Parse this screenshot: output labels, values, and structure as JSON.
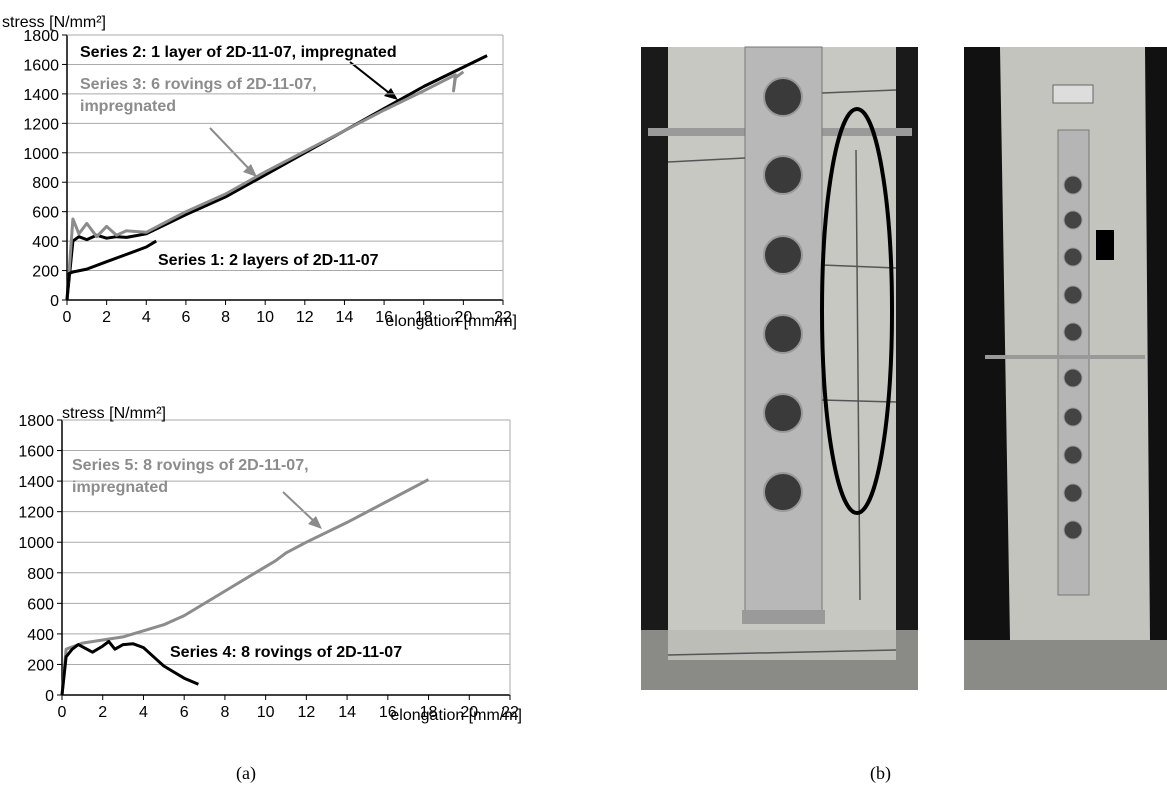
{
  "chart_data": [
    {
      "type": "line",
      "ylabel": "stress [N/mm²]",
      "xlabel": "elongation [mm/m]",
      "xlim": [
        0,
        22
      ],
      "ylim": [
        0,
        1800
      ],
      "xticks": [
        0,
        2,
        4,
        6,
        8,
        10,
        12,
        14,
        16,
        18,
        20,
        22
      ],
      "yticks": [
        0,
        200,
        400,
        600,
        800,
        1000,
        1200,
        1400,
        1600,
        1800
      ],
      "grid": true,
      "series": [
        {
          "name": "Series 2: 1 layer of 2D-11-07, impregnated",
          "color": "#000000",
          "x": [
            0,
            0.3,
            0.6,
            1,
            1.5,
            2,
            2.5,
            3,
            4,
            6,
            8,
            10,
            12,
            14,
            16,
            18,
            21.2
          ],
          "values": [
            0,
            400,
            430,
            410,
            440,
            420,
            430,
            425,
            450,
            580,
            700,
            850,
            1000,
            1150,
            1300,
            1450,
            1660
          ]
        },
        {
          "name": "Series 3: 6 rovings of 2D-11-07,\nimpregnated",
          "color": "#8c8c8c",
          "x": [
            0,
            0.3,
            0.6,
            1,
            1.5,
            2,
            2.5,
            3,
            4,
            5,
            6,
            8,
            10,
            12,
            14,
            16,
            18,
            19.6,
            19.5,
            19.6,
            20
          ],
          "values": [
            0,
            550,
            450,
            520,
            430,
            500,
            440,
            470,
            460,
            530,
            600,
            720,
            870,
            1010,
            1150,
            1290,
            1420,
            1530,
            1420,
            1510,
            1550
          ]
        },
        {
          "name": "Series 1: 2 layers of 2D-11-07",
          "color": "#000000",
          "x": [
            0,
            0.1,
            0.3,
            1,
            2,
            3,
            4,
            4.5
          ],
          "values": [
            0,
            180,
            190,
            210,
            260,
            310,
            360,
            400
          ]
        }
      ]
    },
    {
      "type": "line",
      "ylabel": "stress [N/mm²]",
      "xlabel": "elongation [mm/m]",
      "xlim": [
        0,
        22
      ],
      "ylim": [
        0,
        1800
      ],
      "xticks": [
        0,
        2,
        4,
        6,
        8,
        10,
        12,
        14,
        16,
        18,
        20,
        22
      ],
      "yticks": [
        0,
        200,
        400,
        600,
        800,
        1000,
        1200,
        1400,
        1600,
        1800
      ],
      "grid": true,
      "series": [
        {
          "name": "Series 5: 8 rovings of 2D-11-07,\nimpregnated",
          "color": "#8c8c8c",
          "x": [
            0,
            0.2,
            1,
            2,
            3,
            4,
            5,
            6,
            8,
            10,
            10.5,
            11,
            12,
            14,
            16,
            18
          ],
          "values": [
            0,
            300,
            340,
            360,
            380,
            420,
            460,
            520,
            680,
            840,
            880,
            930,
            1000,
            1130,
            1270,
            1410
          ]
        },
        {
          "name": "Series 4: 8 rovings of 2D-11-07",
          "color": "#000000",
          "x": [
            0,
            0.2,
            0.5,
            0.8,
            1.5,
            2,
            2.3,
            2.6,
            3,
            3.5,
            4,
            4.5,
            5,
            5.5,
            6,
            6.7
          ],
          "values": [
            0,
            250,
            300,
            330,
            280,
            320,
            350,
            300,
            330,
            335,
            310,
            250,
            190,
            150,
            110,
            70
          ]
        }
      ]
    }
  ],
  "captions": [
    "(a)",
    "(b)"
  ]
}
